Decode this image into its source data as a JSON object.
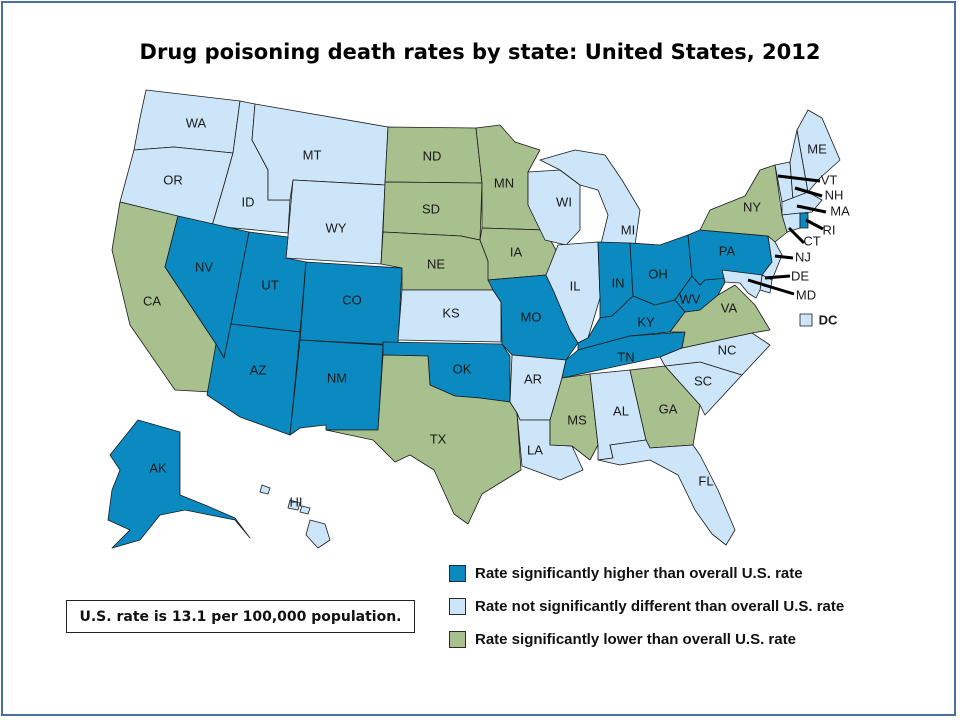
{
  "title": "Drug poisoning death rates by state: United States, 2012",
  "colors": {
    "higher": "#0a8ac0",
    "not_different": "#cde5f8",
    "lower": "#a8bf8e",
    "border": "#4a6fa5"
  },
  "legend": [
    {
      "key": "higher",
      "label": "Rate significantly higher than overall U.S. rate"
    },
    {
      "key": "not_different",
      "label": "Rate not significantly different than overall U.S. rate"
    },
    {
      "key": "lower",
      "label": "Rate significantly lower than overall U.S. rate"
    }
  ],
  "note": "U.S. rate is 13.1 per 100,000 population.",
  "states": {
    "WA": "not_different",
    "OR": "not_different",
    "ID": "not_different",
    "MT": "not_different",
    "WY": "not_different",
    "CA": "lower",
    "NV": "higher",
    "UT": "higher",
    "AZ": "higher",
    "CO": "higher",
    "NM": "higher",
    "ND": "lower",
    "SD": "lower",
    "NE": "lower",
    "KS": "not_different",
    "OK": "higher",
    "TX": "lower",
    "MN": "lower",
    "IA": "lower",
    "MO": "higher",
    "AR": "not_different",
    "LA": "not_different",
    "WI": "not_different",
    "IL": "not_different",
    "MI": "not_different",
    "IN": "higher",
    "OH": "higher",
    "KY": "higher",
    "TN": "higher",
    "MS": "lower",
    "AL": "not_different",
    "GA": "lower",
    "FL": "not_different",
    "SC": "not_different",
    "NC": "not_different",
    "VA": "lower",
    "WV": "higher",
    "PA": "higher",
    "NY": "lower",
    "ME": "not_different",
    "VT": "not_different",
    "NH": "not_different",
    "MA": "not_different",
    "RI": "higher",
    "CT": "not_different",
    "NJ": "not_different",
    "DE": "not_different",
    "MD": "not_different",
    "DC": "not_different",
    "AK": "higher",
    "HI": "not_different"
  }
}
